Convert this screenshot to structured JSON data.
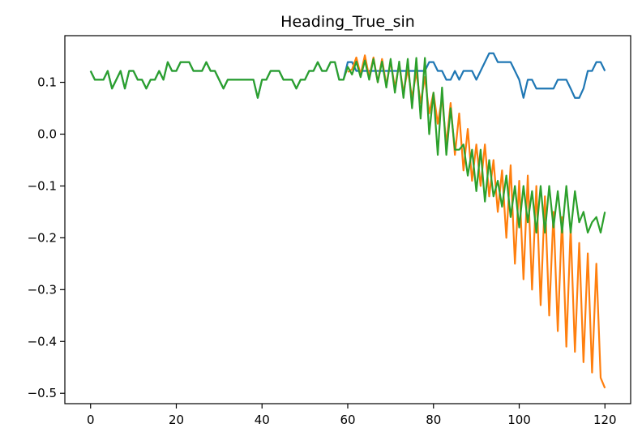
{
  "chart_data": {
    "type": "line",
    "title": "Heading_True_sin",
    "xlabel": "",
    "ylabel": "",
    "xlim": [
      -6,
      126
    ],
    "ylim": [
      -0.52,
      0.19
    ],
    "grid": false,
    "xticks": [
      0,
      20,
      40,
      60,
      80,
      100,
      120
    ],
    "xtick_labels": [
      "0",
      "20",
      "40",
      "60",
      "80",
      "100",
      "120"
    ],
    "yticks": [
      0.1,
      0.0,
      -0.1,
      -0.2,
      -0.3,
      -0.4,
      -0.5
    ],
    "ytick_labels": [
      "0.1",
      "0.0",
      "−0.1",
      "−0.2",
      "−0.3",
      "−0.4",
      "−0.5"
    ],
    "series": [
      {
        "color": "#1f77b4",
        "x": [
          0,
          1,
          2,
          3,
          4,
          5,
          6,
          7,
          8,
          9,
          10,
          11,
          12,
          13,
          14,
          15,
          16,
          17,
          18,
          19,
          20,
          21,
          22,
          23,
          24,
          25,
          26,
          27,
          28,
          29,
          30,
          31,
          32,
          33,
          34,
          35,
          36,
          37,
          38,
          39,
          40,
          41,
          42,
          43,
          44,
          45,
          46,
          47,
          48,
          49,
          50,
          51,
          52,
          53,
          54,
          55,
          56,
          57,
          58,
          59,
          60,
          61,
          62,
          63,
          64,
          65,
          66,
          67,
          68,
          69,
          70,
          71,
          72,
          73,
          74,
          75,
          76,
          77,
          78,
          79,
          80,
          81,
          82,
          83,
          84,
          85,
          86,
          87,
          88,
          89,
          90,
          91,
          92,
          93,
          94,
          95,
          96,
          97,
          98,
          99,
          100,
          101,
          102,
          103,
          104,
          105,
          106,
          107,
          108,
          109,
          110,
          111,
          112,
          113,
          114,
          115,
          116,
          117,
          118,
          119,
          120
        ],
        "y": [
          0.122,
          0.105,
          0.105,
          0.105,
          0.122,
          0.088,
          0.105,
          0.122,
          0.088,
          0.122,
          0.122,
          0.105,
          0.105,
          0.088,
          0.105,
          0.105,
          0.122,
          0.105,
          0.139,
          0.122,
          0.122,
          0.139,
          0.139,
          0.139,
          0.122,
          0.122,
          0.122,
          0.139,
          0.122,
          0.122,
          0.105,
          0.088,
          0.105,
          0.105,
          0.105,
          0.105,
          0.105,
          0.105,
          0.105,
          0.07,
          0.105,
          0.105,
          0.122,
          0.122,
          0.122,
          0.105,
          0.105,
          0.105,
          0.088,
          0.105,
          0.105,
          0.122,
          0.122,
          0.139,
          0.122,
          0.122,
          0.139,
          0.139,
          0.105,
          0.105,
          0.139,
          0.139,
          0.122,
          0.122,
          0.122,
          0.122,
          0.122,
          0.122,
          0.122,
          0.122,
          0.122,
          0.122,
          0.122,
          0.122,
          0.122,
          0.122,
          0.122,
          0.122,
          0.122,
          0.139,
          0.139,
          0.122,
          0.122,
          0.105,
          0.105,
          0.122,
          0.105,
          0.122,
          0.122,
          0.122,
          0.105,
          0.122,
          0.139,
          0.156,
          0.156,
          0.139,
          0.139,
          0.139,
          0.139,
          0.122,
          0.105,
          0.07,
          0.105,
          0.105,
          0.088,
          0.088,
          0.088,
          0.088,
          0.088,
          0.105,
          0.105,
          0.105,
          0.088,
          0.07,
          0.07,
          0.088,
          0.122,
          0.122,
          0.139,
          0.139,
          0.122
        ]
      },
      {
        "color": "#ff7f0e",
        "x": [
          60,
          61,
          62,
          63,
          64,
          65,
          66,
          67,
          68,
          69,
          70,
          71,
          72,
          73,
          74,
          75,
          76,
          77,
          78,
          79,
          80,
          81,
          82,
          83,
          84,
          85,
          86,
          87,
          88,
          89,
          90,
          91,
          92,
          93,
          94,
          95,
          96,
          97,
          98,
          99,
          100,
          101,
          102,
          103,
          104,
          105,
          106,
          107,
          108,
          109,
          110,
          111,
          112,
          113,
          114,
          115,
          116,
          117,
          118,
          119,
          120
        ],
        "y": [
          0.12,
          0.125,
          0.148,
          0.115,
          0.152,
          0.11,
          0.148,
          0.1,
          0.145,
          0.095,
          0.14,
          0.09,
          0.135,
          0.08,
          0.125,
          0.07,
          0.12,
          0.06,
          0.11,
          0.04,
          0.08,
          0.02,
          0.07,
          -0.02,
          0.06,
          -0.04,
          0.04,
          -0.07,
          0.01,
          -0.09,
          -0.02,
          -0.1,
          -0.02,
          -0.12,
          -0.05,
          -0.15,
          -0.07,
          -0.2,
          -0.06,
          -0.25,
          -0.09,
          -0.28,
          -0.08,
          -0.3,
          -0.1,
          -0.33,
          -0.12,
          -0.35,
          -0.15,
          -0.38,
          -0.16,
          -0.41,
          -0.18,
          -0.42,
          -0.21,
          -0.44,
          -0.23,
          -0.46,
          -0.25,
          -0.47,
          -0.49
        ]
      },
      {
        "color": "#2ca02c",
        "x": [
          0,
          1,
          2,
          3,
          4,
          5,
          6,
          7,
          8,
          9,
          10,
          11,
          12,
          13,
          14,
          15,
          16,
          17,
          18,
          19,
          20,
          21,
          22,
          23,
          24,
          25,
          26,
          27,
          28,
          29,
          30,
          31,
          32,
          33,
          34,
          35,
          36,
          37,
          38,
          39,
          40,
          41,
          42,
          43,
          44,
          45,
          46,
          47,
          48,
          49,
          50,
          51,
          52,
          53,
          54,
          55,
          56,
          57,
          58,
          59,
          60,
          61,
          62,
          63,
          64,
          65,
          66,
          67,
          68,
          69,
          70,
          71,
          72,
          73,
          74,
          75,
          76,
          77,
          78,
          79,
          80,
          81,
          82,
          83,
          84,
          85,
          86,
          87,
          88,
          89,
          90,
          91,
          92,
          93,
          94,
          95,
          96,
          97,
          98,
          99,
          100,
          101,
          102,
          103,
          104,
          105,
          106,
          107,
          108,
          109,
          110,
          111,
          112,
          113,
          114,
          115,
          116,
          117,
          118,
          119,
          120
        ],
        "y": [
          0.122,
          0.105,
          0.105,
          0.105,
          0.122,
          0.088,
          0.105,
          0.122,
          0.088,
          0.122,
          0.122,
          0.105,
          0.105,
          0.088,
          0.105,
          0.105,
          0.122,
          0.105,
          0.139,
          0.122,
          0.122,
          0.139,
          0.139,
          0.139,
          0.122,
          0.122,
          0.122,
          0.139,
          0.122,
          0.122,
          0.105,
          0.088,
          0.105,
          0.105,
          0.105,
          0.105,
          0.105,
          0.105,
          0.105,
          0.07,
          0.105,
          0.105,
          0.122,
          0.122,
          0.122,
          0.105,
          0.105,
          0.105,
          0.088,
          0.105,
          0.105,
          0.122,
          0.122,
          0.139,
          0.122,
          0.122,
          0.139,
          0.139,
          0.105,
          0.105,
          0.13,
          0.115,
          0.14,
          0.11,
          0.142,
          0.105,
          0.145,
          0.1,
          0.14,
          0.09,
          0.145,
          0.08,
          0.14,
          0.07,
          0.145,
          0.05,
          0.147,
          0.03,
          0.147,
          0.0,
          0.08,
          -0.04,
          0.09,
          -0.04,
          0.05,
          -0.03,
          -0.03,
          -0.02,
          -0.08,
          -0.03,
          -0.11,
          -0.03,
          -0.13,
          -0.05,
          -0.12,
          -0.09,
          -0.14,
          -0.08,
          -0.16,
          -0.1,
          -0.18,
          -0.1,
          -0.17,
          -0.11,
          -0.19,
          -0.1,
          -0.19,
          -0.1,
          -0.18,
          -0.11,
          -0.19,
          -0.1,
          -0.19,
          -0.11,
          -0.17,
          -0.15,
          -0.19,
          -0.17,
          -0.16,
          -0.19,
          -0.15
        ]
      }
    ]
  }
}
